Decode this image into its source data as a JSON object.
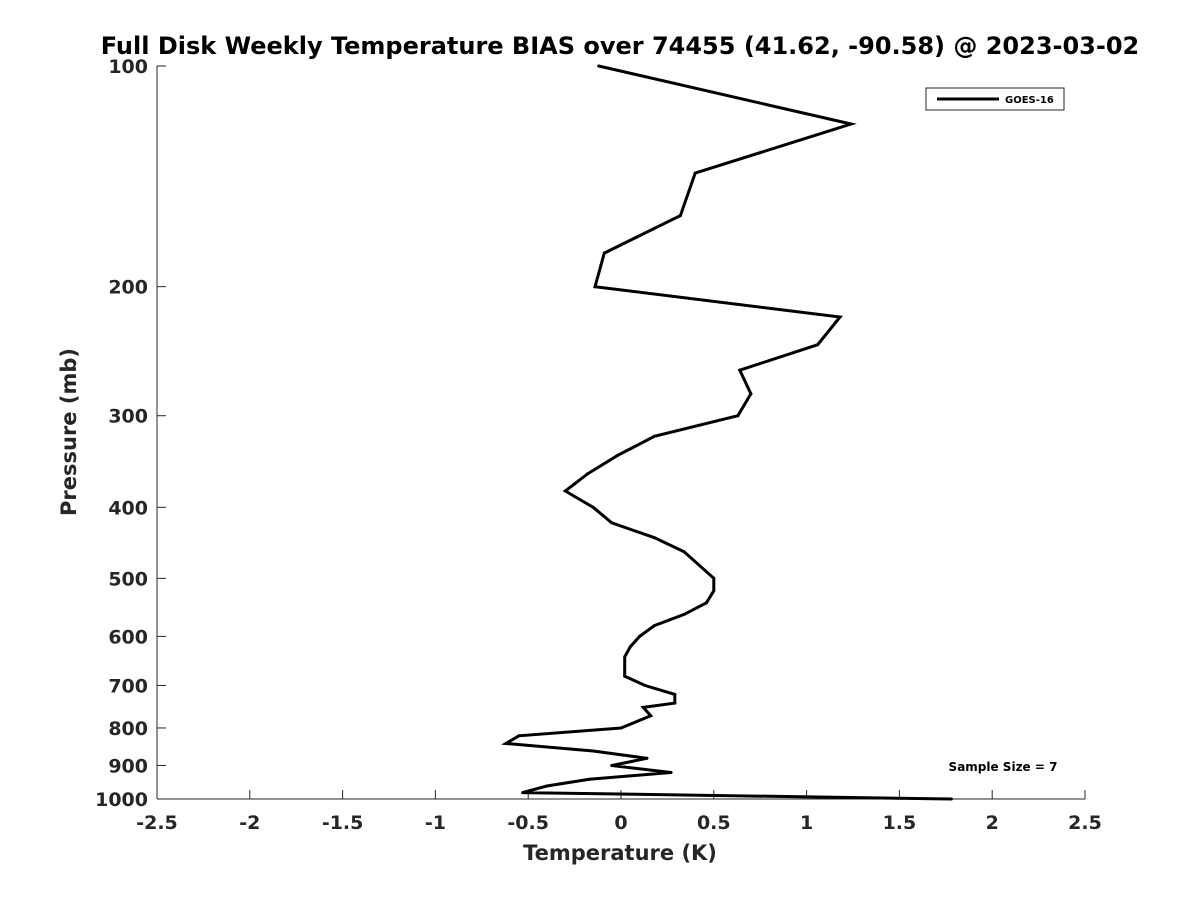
{
  "chart_data": {
    "type": "line",
    "title": "Full Disk Weekly Temperature BIAS over 74455 (41.62, -90.58) @ 2023-03-02",
    "xlabel": "Temperature (K)",
    "ylabel": "Pressure (mb)",
    "xlim": [
      -2.5,
      2.5
    ],
    "ylim": [
      100,
      1000
    ],
    "y_scale": "log",
    "y_reversed": true,
    "x_ticks": [
      -2.5,
      -2,
      -1.5,
      -1,
      -0.5,
      0,
      0.5,
      1,
      1.5,
      2,
      2.5
    ],
    "x_tick_labels": [
      "-2.5",
      "-2",
      "-1.5",
      "-1",
      "-0.5",
      "0",
      "0.5",
      "1",
      "1.5",
      "2",
      "2.5"
    ],
    "y_ticks": [
      100,
      200,
      300,
      400,
      500,
      600,
      700,
      800,
      900,
      1000
    ],
    "y_tick_labels": [
      "100",
      "200",
      "300",
      "400",
      "500",
      "600",
      "700",
      "800",
      "900",
      "1000"
    ],
    "grid": false,
    "legend_position": "top-right",
    "annotation": "Sample Size = 7",
    "series": [
      {
        "name": "GOES-16",
        "color": "#000000",
        "points": [
          {
            "x": -0.12,
            "y": 100
          },
          {
            "x": 1.24,
            "y": 120
          },
          {
            "x": 0.4,
            "y": 140
          },
          {
            "x": 0.32,
            "y": 160
          },
          {
            "x": -0.09,
            "y": 180
          },
          {
            "x": -0.14,
            "y": 200
          },
          {
            "x": 1.18,
            "y": 220
          },
          {
            "x": 1.06,
            "y": 240
          },
          {
            "x": 0.64,
            "y": 260
          },
          {
            "x": 0.7,
            "y": 280
          },
          {
            "x": 0.63,
            "y": 300
          },
          {
            "x": 0.18,
            "y": 320
          },
          {
            "x": -0.02,
            "y": 340
          },
          {
            "x": -0.18,
            "y": 360
          },
          {
            "x": -0.3,
            "y": 380
          },
          {
            "x": -0.15,
            "y": 400
          },
          {
            "x": -0.05,
            "y": 420
          },
          {
            "x": 0.18,
            "y": 440
          },
          {
            "x": 0.34,
            "y": 460
          },
          {
            "x": 0.5,
            "y": 500
          },
          {
            "x": 0.5,
            "y": 520
          },
          {
            "x": 0.46,
            "y": 540
          },
          {
            "x": 0.34,
            "y": 560
          },
          {
            "x": 0.18,
            "y": 580
          },
          {
            "x": 0.1,
            "y": 600
          },
          {
            "x": 0.05,
            "y": 620
          },
          {
            "x": 0.02,
            "y": 640
          },
          {
            "x": 0.02,
            "y": 660
          },
          {
            "x": 0.02,
            "y": 680
          },
          {
            "x": 0.13,
            "y": 700
          },
          {
            "x": 0.29,
            "y": 720
          },
          {
            "x": 0.29,
            "y": 740
          },
          {
            "x": 0.12,
            "y": 750
          },
          {
            "x": 0.16,
            "y": 770
          },
          {
            "x": 0.0,
            "y": 800
          },
          {
            "x": -0.55,
            "y": 820
          },
          {
            "x": -0.62,
            "y": 840
          },
          {
            "x": -0.15,
            "y": 860
          },
          {
            "x": 0.14,
            "y": 880
          },
          {
            "x": -0.05,
            "y": 900
          },
          {
            "x": 0.27,
            "y": 920
          },
          {
            "x": -0.17,
            "y": 940
          },
          {
            "x": -0.4,
            "y": 960
          },
          {
            "x": -0.53,
            "y": 980
          },
          {
            "x": 1.78,
            "y": 1000
          }
        ]
      }
    ]
  }
}
